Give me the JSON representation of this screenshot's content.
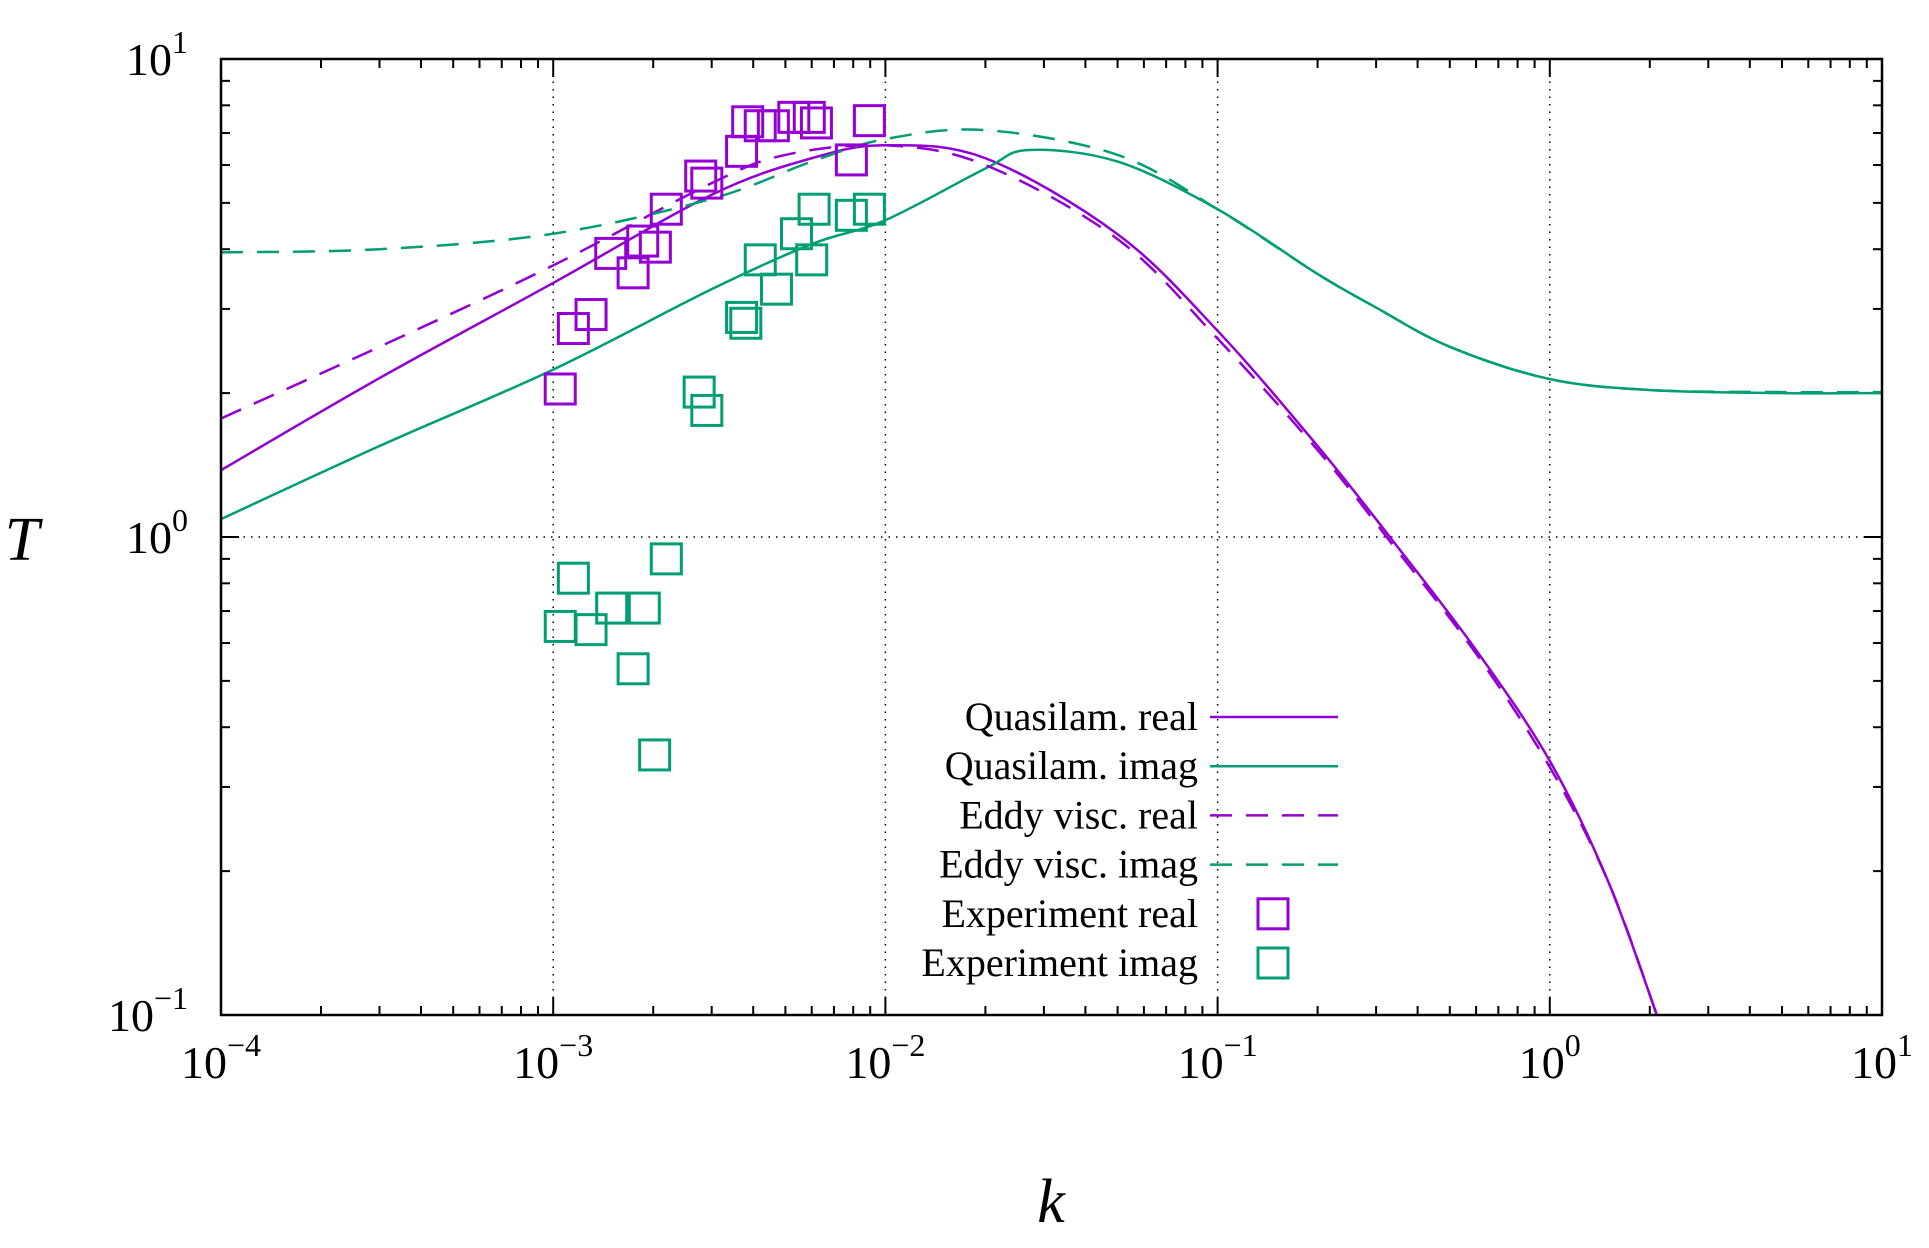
{
  "chart_data": {
    "type": "line",
    "title": "",
    "xlabel": "k",
    "ylabel": "T",
    "xscale": "log",
    "yscale": "log",
    "xlim": [
      0.0001,
      10
    ],
    "ylim": [
      0.1,
      10
    ],
    "grid": "major, dotted",
    "legend_placement": "bottom-center",
    "x_ticks": [
      {
        "base": "10",
        "exp": "−4"
      },
      {
        "base": "10",
        "exp": "−3"
      },
      {
        "base": "10",
        "exp": "−2"
      },
      {
        "base": "10",
        "exp": "−1"
      },
      {
        "base": "10",
        "exp": "0"
      },
      {
        "base": "10",
        "exp": "1"
      }
    ],
    "x_tick_values": [
      0.0001,
      0.001,
      0.01,
      0.1,
      1,
      10
    ],
    "y_ticks": [
      {
        "base": "10",
        "exp": "−1"
      },
      {
        "base": "10",
        "exp": "0"
      },
      {
        "base": "10",
        "exp": "1"
      }
    ],
    "y_tick_values": [
      0.1,
      1,
      10
    ],
    "series": [
      {
        "name": "Quasilam. real",
        "kind": "line",
        "dash": "solid",
        "color": "#9400D3",
        "x": [
          0.0001,
          0.0003,
          0.001,
          0.003,
          0.006,
          0.01,
          0.02,
          0.05,
          0.1,
          0.2,
          0.33,
          0.6,
          1,
          1.5,
          2.1
        ],
        "y": [
          1.38,
          2.15,
          3.4,
          5.2,
          6.2,
          6.6,
          6.2,
          4.3,
          2.7,
          1.55,
          1.0,
          0.58,
          0.34,
          0.19,
          0.1
        ]
      },
      {
        "name": "Quasilam. imag",
        "kind": "line",
        "dash": "solid",
        "color": "#009E73",
        "x": [
          0.0001,
          0.0003,
          0.001,
          0.003,
          0.006,
          0.01,
          0.02,
          0.027,
          0.05,
          0.1,
          0.2,
          0.3,
          0.5,
          1,
          2,
          5,
          10
        ],
        "y": [
          1.09,
          1.55,
          2.24,
          3.3,
          4.1,
          4.6,
          5.9,
          6.45,
          6.1,
          4.85,
          3.55,
          3.02,
          2.5,
          2.14,
          2.03,
          2.0,
          2.0
        ]
      },
      {
        "name": "Eddy visc. real",
        "kind": "line",
        "dash": "dashed",
        "color": "#9400D3",
        "x": [
          0.0001,
          0.0003,
          0.001,
          0.003,
          0.005,
          0.01,
          0.02,
          0.05,
          0.1,
          0.2,
          0.33,
          0.6,
          1,
          1.5,
          2.1
        ],
        "y": [
          1.77,
          2.5,
          3.7,
          5.5,
          6.3,
          6.6,
          6.0,
          4.2,
          2.6,
          1.52,
          0.98,
          0.57,
          0.33,
          0.19,
          0.1
        ]
      },
      {
        "name": "Eddy visc. imag",
        "kind": "line",
        "dash": "dashed",
        "color": "#009E73",
        "x": [
          0.0001,
          0.0003,
          0.001,
          0.003,
          0.006,
          0.01,
          0.02,
          0.05,
          0.1,
          0.2,
          0.3,
          0.5,
          1,
          2,
          5,
          10
        ],
        "y": [
          3.94,
          4.0,
          4.31,
          5.1,
          6.1,
          6.8,
          7.1,
          6.3,
          4.85,
          3.55,
          3.02,
          2.5,
          2.14,
          2.03,
          2.01,
          2.01
        ]
      },
      {
        "name": "Experiment real",
        "kind": "scatter",
        "marker": "open-square",
        "color": "#9400D3",
        "x": [
          0.00105,
          0.00115,
          0.0013,
          0.00149,
          0.00174,
          0.00186,
          0.00203,
          0.00219,
          0.00278,
          0.0029,
          0.00369,
          0.00385,
          0.0042,
          0.0046,
          0.0053,
          0.0059,
          0.0062,
          0.0079,
          0.00895
        ],
        "y": [
          2.04,
          2.73,
          2.92,
          3.92,
          3.57,
          4.16,
          4.04,
          4.85,
          5.69,
          5.5,
          6.41,
          7.39,
          7.25,
          7.25,
          7.55,
          7.55,
          7.35,
          6.15,
          7.43
        ]
      },
      {
        "name": "Experiment imag",
        "kind": "scatter",
        "marker": "open-square",
        "color": "#009E73",
        "x": [
          0.00105,
          0.00115,
          0.0013,
          0.0015,
          0.00174,
          0.00188,
          0.00202,
          0.00219,
          0.00275,
          0.0029,
          0.00369,
          0.0038,
          0.0042,
          0.0047,
          0.0054,
          0.006,
          0.0061,
          0.0079,
          0.00895
        ],
        "y": [
          0.65,
          0.82,
          0.64,
          0.71,
          0.53,
          0.71,
          0.35,
          0.9,
          2.01,
          1.84,
          2.88,
          2.8,
          3.8,
          3.3,
          4.31,
          3.8,
          4.85,
          4.71,
          4.85
        ]
      }
    ]
  }
}
